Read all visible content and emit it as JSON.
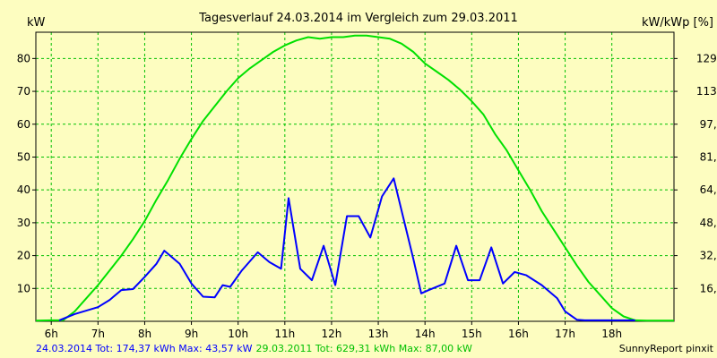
{
  "chart_data": {
    "type": "line",
    "title": "Tagesverlauf 24.03.2014 im Vergleich zum 29.03.2011",
    "ylabel_left": "kW",
    "ylabel_right": "kW/kWp [%]",
    "x_ticks": [
      "6h",
      "7h",
      "8h",
      "9h",
      "10h",
      "11h",
      "12h",
      "13h",
      "14h",
      "15h",
      "16h",
      "17h",
      "18h"
    ],
    "xlim": [
      5.67,
      19.33
    ],
    "y_ticks_left": [
      "10",
      "20",
      "30",
      "40",
      "50",
      "60",
      "70",
      "80"
    ],
    "ylim_left": [
      0,
      88
    ],
    "y_ticks_right": [
      "16,2",
      "32,4",
      "48,6",
      "64,9",
      "81,1",
      "97,3",
      "113,5",
      "129,7"
    ],
    "grid": true,
    "colors": {
      "background": "#fdfdc0",
      "grid": "#00c000",
      "series_2014": "#0000ff",
      "series_2011": "#00e000"
    },
    "series": [
      {
        "name": "24.03.2014",
        "color": "#0000ff",
        "x": [
          6.17,
          6.5,
          7.0,
          7.25,
          7.5,
          7.75,
          8.0,
          8.25,
          8.42,
          8.75,
          9.0,
          9.25,
          9.5,
          9.67,
          9.83,
          10.08,
          10.42,
          10.67,
          10.92,
          11.08,
          11.33,
          11.58,
          11.83,
          12.08,
          12.33,
          12.58,
          12.83,
          13.08,
          13.33,
          13.75,
          13.92,
          14.08,
          14.42,
          14.67,
          14.92,
          15.17,
          15.42,
          15.67,
          15.92,
          16.17,
          16.5,
          16.83,
          17.0,
          17.25,
          17.42,
          17.67,
          18.0,
          18.5
        ],
        "y": [
          0.3,
          2.2,
          4.3,
          6.5,
          9.5,
          9.8,
          13.5,
          17.5,
          21.5,
          17.5,
          11.5,
          7.5,
          7.3,
          11.0,
          10.5,
          15.5,
          21.0,
          18.0,
          16.0,
          37.5,
          16.0,
          12.5,
          23.0,
          11.0,
          32.0,
          32.0,
          25.5,
          38.0,
          43.5,
          19.0,
          8.5,
          9.5,
          11.5,
          23.0,
          12.5,
          12.5,
          22.5,
          11.5,
          15.0,
          14.0,
          11.0,
          7.0,
          3.0,
          0.5,
          0.3,
          0.3,
          0.3,
          0.3
        ]
      },
      {
        "name": "29.03.2011",
        "color": "#00e000",
        "x": [
          5.67,
          6.0,
          6.25,
          6.5,
          6.75,
          7.0,
          7.25,
          7.5,
          7.75,
          8.0,
          8.25,
          8.5,
          8.75,
          9.0,
          9.25,
          9.5,
          9.75,
          10.0,
          10.25,
          10.5,
          10.75,
          11.0,
          11.25,
          11.5,
          11.75,
          12.0,
          12.25,
          12.5,
          12.75,
          13.0,
          13.25,
          13.5,
          13.75,
          14.0,
          14.25,
          14.5,
          14.75,
          15.0,
          15.25,
          15.5,
          15.75,
          16.0,
          16.25,
          16.5,
          16.75,
          17.0,
          17.25,
          17.5,
          17.75,
          18.0,
          18.25,
          18.5,
          18.75,
          19.0,
          19.33
        ],
        "y": [
          0.2,
          0.3,
          0.3,
          3.0,
          7.0,
          11.0,
          15.5,
          20.0,
          25.0,
          30.5,
          37.0,
          43.0,
          49.5,
          55.5,
          61.0,
          65.5,
          70.0,
          74.0,
          77.0,
          79.5,
          82.0,
          84.0,
          85.5,
          86.5,
          86.0,
          86.5,
          86.5,
          87.0,
          87.0,
          86.5,
          86.0,
          84.5,
          82.0,
          78.5,
          76.0,
          73.5,
          70.5,
          67.0,
          63.0,
          57.0,
          52.0,
          46.0,
          40.0,
          33.5,
          28.0,
          22.5,
          17.0,
          12.0,
          8.0,
          4.0,
          1.5,
          0.3,
          0.2,
          0.2,
          0.2
        ]
      }
    ]
  },
  "footer": {
    "series_2014_summary": "24.03.2014 Tot: 174,37 kWh Max: 43,57 kW",
    "series_2011_summary": "29.03.2011 Tot: 629,31 kWh Max: 87,00 kW",
    "brand": "SunnyReport pinxit"
  }
}
